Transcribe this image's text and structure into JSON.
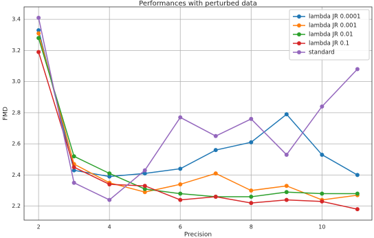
{
  "chart_data": {
    "type": "line",
    "title": "Performances with perturbed data",
    "x_label": "Precision",
    "y_label": "FMD",
    "x": [
      2,
      3,
      4,
      5,
      6,
      7,
      8,
      9,
      10,
      11
    ],
    "series": [
      {
        "name": "lambda JR 0.0001",
        "color": "#1f77b4",
        "values": [
          3.33,
          2.43,
          2.39,
          2.41,
          2.44,
          2.56,
          2.61,
          2.79,
          2.53,
          2.4
        ]
      },
      {
        "name": "lambda JR 0.001",
        "color": "#ff7f0e",
        "values": [
          3.31,
          2.47,
          2.35,
          2.29,
          2.34,
          2.41,
          2.3,
          2.33,
          2.24,
          2.27
        ]
      },
      {
        "name": "lambda JR 0.01",
        "color": "#2ca02c",
        "values": [
          3.28,
          2.52,
          2.41,
          2.31,
          2.28,
          2.26,
          2.26,
          2.29,
          2.28,
          2.28
        ]
      },
      {
        "name": "lambda JR 0.1",
        "color": "#d62728",
        "values": [
          3.19,
          2.45,
          2.34,
          2.33,
          2.24,
          2.26,
          2.22,
          2.24,
          2.23,
          2.18
        ]
      },
      {
        "name": "standard",
        "color": "#9467bd",
        "values": [
          3.41,
          2.35,
          2.24,
          2.43,
          2.77,
          2.65,
          2.76,
          2.53,
          2.84,
          3.08
        ]
      }
    ],
    "xlim": [
      1.59,
      11.41
    ],
    "ylim": [
      2.11,
      3.48
    ],
    "xticks": [
      2,
      4,
      6,
      8,
      10
    ],
    "yticks": [
      2.2,
      2.4,
      2.6,
      2.8,
      {
        "value": 3,
        "label": "3.0"
      },
      3.2,
      3.4
    ],
    "grid": true,
    "legend": "upper right"
  }
}
